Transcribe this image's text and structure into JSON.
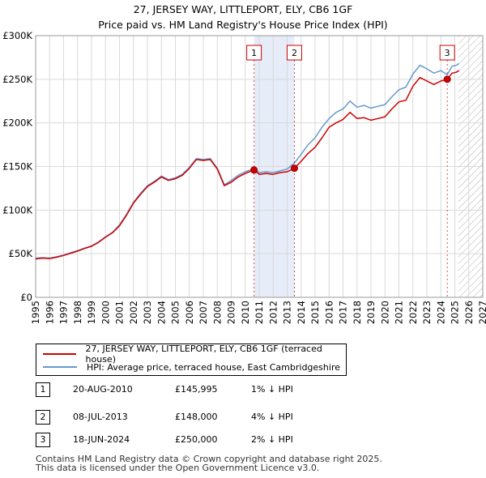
{
  "chart_data": {
    "type": "line",
    "title": "27, JERSEY WAY, LITTLEPORT, ELY, CB6 1GF",
    "subtitle": "Price paid vs. HM Land Registry's House Price Index (HPI)",
    "xlim": [
      1995,
      2027
    ],
    "ylim": [
      0,
      300000
    ],
    "y_ticks": [
      0,
      50000,
      100000,
      150000,
      200000,
      250000,
      300000
    ],
    "y_tick_labels": [
      "£0",
      "£50K",
      "£100K",
      "£150K",
      "£200K",
      "£250K",
      "£300K"
    ],
    "x_ticks": [
      1995,
      1996,
      1997,
      1998,
      1999,
      2000,
      2001,
      2002,
      2003,
      2004,
      2005,
      2006,
      2007,
      2008,
      2009,
      2010,
      2011,
      2012,
      2013,
      2014,
      2015,
      2016,
      2017,
      2018,
      2019,
      2020,
      2021,
      2022,
      2023,
      2024,
      2025,
      2026,
      2027
    ],
    "x_tick_labels": [
      "1995",
      "1996",
      "1997",
      "1998",
      "1999",
      "2000",
      "2001",
      "2002",
      "2003",
      "2004",
      "2005",
      "2006",
      "2007",
      "2008",
      "2009",
      "2010",
      "2011",
      "2012",
      "2013",
      "2014",
      "2015",
      "2016",
      "2017",
      "2018",
      "2019",
      "2020",
      "2021",
      "2022",
      "2023",
      "2024",
      "2025",
      "2026",
      "2027"
    ],
    "grid": true,
    "shaded_span": [
      2010.63,
      2013.52
    ],
    "hatched_span": [
      2025.25,
      2027
    ],
    "series": [
      {
        "name": "27, JERSEY WAY, LITTLEPORT, ELY, CB6 1GF (terraced house)",
        "color": "#cc0000",
        "x": [
          1995,
          1995.5,
          1996,
          1996.5,
          1997,
          1997.5,
          1998,
          1998.5,
          1999,
          1999.5,
          2000,
          2000.5,
          2001,
          2001.5,
          2002,
          2002.5,
          2003,
          2003.5,
          2004,
          2004.5,
          2005,
          2005.5,
          2006,
          2006.5,
          2007,
          2007.5,
          2008,
          2008.5,
          2009,
          2009.5,
          2010,
          2010.63,
          2011,
          2011.5,
          2012,
          2012.5,
          2013,
          2013.52,
          2014,
          2014.5,
          2015,
          2015.5,
          2016,
          2016.5,
          2017,
          2017.5,
          2018,
          2018.5,
          2019,
          2019.5,
          2020,
          2020.5,
          2021,
          2021.5,
          2022,
          2022.5,
          2023,
          2023.5,
          2024,
          2024.46,
          2024.8,
          2025.1,
          2025.3
        ],
        "values": [
          44000,
          45000,
          44500,
          46000,
          48000,
          50500,
          53000,
          56000,
          58500,
          63000,
          69000,
          74000,
          82000,
          94000,
          108000,
          118000,
          127000,
          132000,
          138000,
          134000,
          136000,
          140000,
          148000,
          158000,
          157000,
          158000,
          147000,
          128000,
          132000,
          138000,
          142000,
          145995,
          141000,
          142000,
          141000,
          143000,
          144000,
          148000,
          156000,
          165000,
          172000,
          183000,
          195000,
          200000,
          204000,
          212000,
          205000,
          206000,
          203000,
          205000,
          207000,
          216000,
          224000,
          226000,
          242000,
          252000,
          248000,
          244000,
          248000,
          250000,
          257000,
          258000,
          260000
        ]
      },
      {
        "name": "HPI: Average price, terraced house, East Cambridgeshire",
        "color": "#6699cc",
        "x": [
          1995,
          1995.5,
          1996,
          1996.5,
          1997,
          1997.5,
          1998,
          1998.5,
          1999,
          1999.5,
          2000,
          2000.5,
          2001,
          2001.5,
          2002,
          2002.5,
          2003,
          2003.5,
          2004,
          2004.5,
          2005,
          2005.5,
          2006,
          2006.5,
          2007,
          2007.5,
          2008,
          2008.5,
          2009,
          2009.5,
          2010,
          2010.63,
          2011,
          2011.5,
          2012,
          2012.5,
          2013,
          2013.52,
          2014,
          2014.5,
          2015,
          2015.5,
          2016,
          2016.5,
          2017,
          2017.5,
          2018,
          2018.5,
          2019,
          2019.5,
          2020,
          2020.5,
          2021,
          2021.5,
          2022,
          2022.5,
          2023,
          2023.5,
          2024,
          2024.46,
          2024.8,
          2025.1,
          2025.3
        ],
        "values": [
          45000,
          45500,
          45000,
          46500,
          48500,
          51000,
          53500,
          56500,
          59000,
          63500,
          69500,
          74500,
          83000,
          95000,
          109000,
          119000,
          128000,
          133000,
          139000,
          135000,
          137000,
          141000,
          149000,
          159000,
          158000,
          159000,
          148000,
          129000,
          134000,
          140000,
          144000,
          147500,
          143000,
          144000,
          143000,
          145000,
          147000,
          154000,
          164000,
          175000,
          183000,
          195000,
          205000,
          212000,
          216000,
          225000,
          218000,
          220000,
          217000,
          219000,
          221000,
          230000,
          238000,
          241000,
          256000,
          266000,
          262000,
          257000,
          260000,
          255000,
          265000,
          266000,
          268000
        ]
      }
    ],
    "markers": [
      {
        "label": "1",
        "x": 2010.63,
        "y": 145995
      },
      {
        "label": "2",
        "x": 2013.52,
        "y": 148000
      },
      {
        "label": "3",
        "x": 2024.46,
        "y": 250000
      }
    ]
  },
  "legend": {
    "items": [
      {
        "label": "27, JERSEY WAY, LITTLEPORT, ELY, CB6 1GF (terraced house)",
        "color": "#cc0000"
      },
      {
        "label": "HPI: Average price, terraced house, East Cambridgeshire",
        "color": "#6699cc"
      }
    ]
  },
  "transactions": [
    {
      "num": "1",
      "date": "20-AUG-2010",
      "price": "£145,995",
      "hpi": "1% ↓ HPI"
    },
    {
      "num": "2",
      "date": "08-JUL-2013",
      "price": "£148,000",
      "hpi": "4% ↓ HPI"
    },
    {
      "num": "3",
      "date": "18-JUN-2024",
      "price": "£250,000",
      "hpi": "2% ↓ HPI"
    }
  ],
  "footer": {
    "line1": "Contains HM Land Registry data © Crown copyright and database right 2025.",
    "line2": "This data is licensed under the Open Government Licence v3.0."
  }
}
